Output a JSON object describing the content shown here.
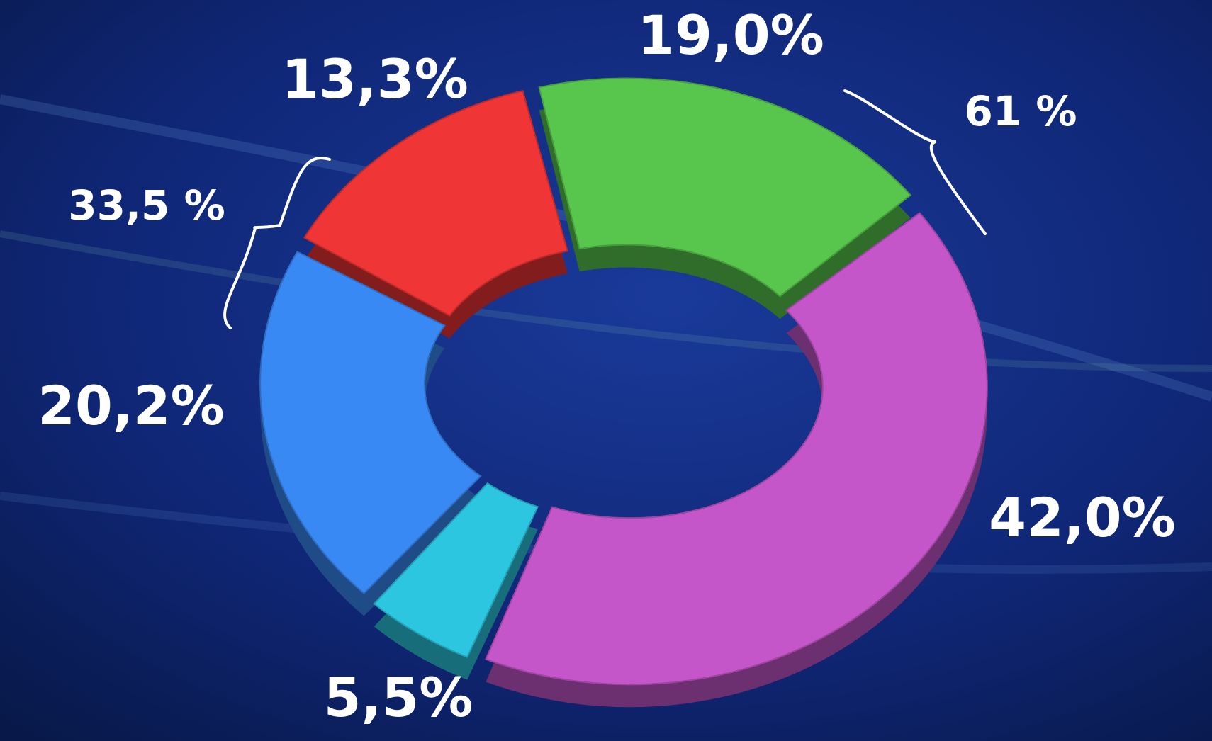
{
  "chart_data": {
    "type": "donut",
    "categories": [
      null,
      null,
      null,
      null,
      null
    ],
    "values": [
      19.0,
      42.0,
      5.5,
      20.2,
      13.3
    ],
    "value_labels": [
      "19,0%",
      "42,0%",
      "5,5%",
      "20,2%",
      "13,3%"
    ],
    "colors": [
      "#58c64c",
      "#c456c9",
      "#2cc6e0",
      "#3889f4",
      "#ef3535"
    ],
    "annotations": [
      "61 %",
      "33,5 %"
    ]
  }
}
